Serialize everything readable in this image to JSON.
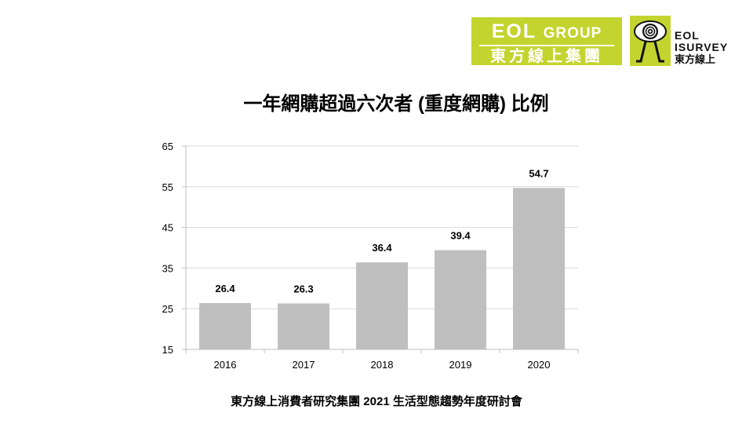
{
  "logos": {
    "eol_group": {
      "line1_big": "EOL",
      "line1_small": "GROUP",
      "line2": "東方線上集團",
      "bg_color": "#c3d42e"
    },
    "eol_isurvey": {
      "line1": "EOL",
      "line2": "ISURVEY",
      "line3": "東方線上",
      "icon": "eye-figure-icon",
      "bg_color": "#c3d42e"
    }
  },
  "chart_data": {
    "type": "bar",
    "title": "一年網購超過六次者 (重度網購) 比例",
    "xlabel": "",
    "ylabel": "",
    "categories": [
      "2016",
      "2017",
      "2018",
      "2019",
      "2020"
    ],
    "values": [
      26.4,
      26.3,
      36.4,
      39.4,
      54.7
    ],
    "value_labels": [
      "26.4",
      "26.3",
      "36.4",
      "39.4",
      "54.7"
    ],
    "ylim": [
      15,
      65
    ],
    "yticks": [
      15,
      25,
      35,
      45,
      55,
      65
    ],
    "ytick_labels": [
      "15",
      "25",
      "35",
      "45",
      "55",
      "65"
    ],
    "grid": true,
    "legend": "none",
    "bar_color": "#bfbfbf"
  },
  "footer": {
    "text": "東方線上消費者研究集團 2021 生活型態趨勢年度研討會"
  }
}
